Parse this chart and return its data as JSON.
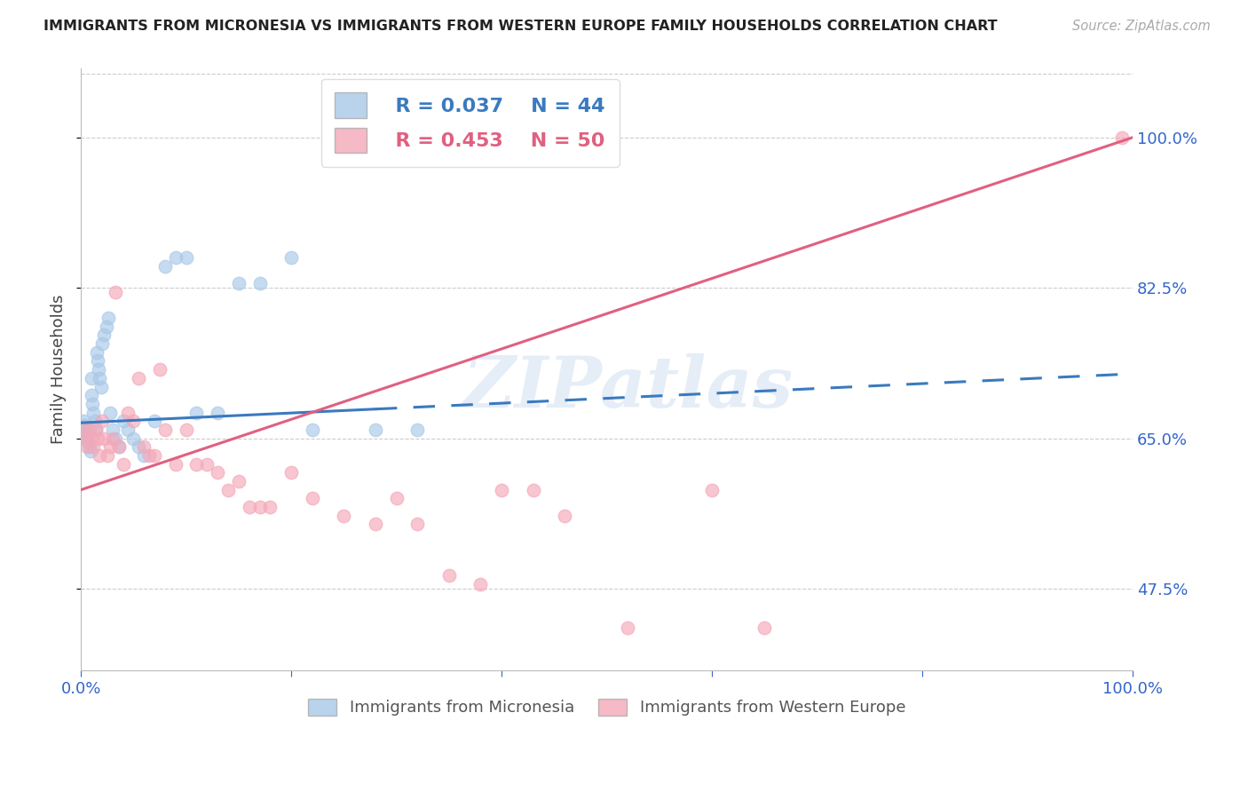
{
  "title": "IMMIGRANTS FROM MICRONESIA VS IMMIGRANTS FROM WESTERN EUROPE FAMILY HOUSEHOLDS CORRELATION CHART",
  "source": "Source: ZipAtlas.com",
  "ylabel": "Family Households",
  "xlim": [
    0.0,
    1.0
  ],
  "ylim": [
    0.38,
    1.08
  ],
  "yticks": [
    0.475,
    0.65,
    0.825,
    1.0
  ],
  "ytick_labels": [
    "47.5%",
    "65.0%",
    "82.5%",
    "100.0%"
  ],
  "xticks": [
    0.0,
    0.2,
    0.4,
    0.6,
    0.8,
    1.0
  ],
  "xtick_labels": [
    "0.0%",
    "",
    "",
    "",
    "",
    "100.0%"
  ],
  "legend1_r": "R = 0.037",
  "legend1_n": "N = 44",
  "legend2_r": "R = 0.453",
  "legend2_n": "N = 50",
  "blue_color": "#a8c8e8",
  "pink_color": "#f4a8b8",
  "blue_line_color": "#3a7abf",
  "pink_line_color": "#e06080",
  "watermark_text": "ZIPatlas",
  "blue_scatter_x": [
    0.002,
    0.003,
    0.004,
    0.005,
    0.006,
    0.007,
    0.008,
    0.009,
    0.01,
    0.01,
    0.011,
    0.012,
    0.013,
    0.014,
    0.015,
    0.016,
    0.017,
    0.018,
    0.019,
    0.02,
    0.022,
    0.024,
    0.026,
    0.028,
    0.03,
    0.033,
    0.036,
    0.04,
    0.045,
    0.05,
    0.055,
    0.06,
    0.07,
    0.08,
    0.09,
    0.1,
    0.11,
    0.13,
    0.15,
    0.17,
    0.2,
    0.22,
    0.28,
    0.32
  ],
  "blue_scatter_y": [
    0.67,
    0.665,
    0.66,
    0.655,
    0.65,
    0.645,
    0.64,
    0.635,
    0.7,
    0.72,
    0.69,
    0.68,
    0.67,
    0.66,
    0.75,
    0.74,
    0.73,
    0.72,
    0.71,
    0.76,
    0.77,
    0.78,
    0.79,
    0.68,
    0.66,
    0.65,
    0.64,
    0.67,
    0.66,
    0.65,
    0.64,
    0.63,
    0.67,
    0.85,
    0.86,
    0.86,
    0.68,
    0.68,
    0.83,
    0.83,
    0.86,
    0.66,
    0.66,
    0.66
  ],
  "pink_scatter_x": [
    0.002,
    0.004,
    0.006,
    0.008,
    0.01,
    0.012,
    0.014,
    0.016,
    0.018,
    0.02,
    0.022,
    0.025,
    0.028,
    0.03,
    0.033,
    0.036,
    0.04,
    0.045,
    0.05,
    0.055,
    0.06,
    0.065,
    0.07,
    0.075,
    0.08,
    0.09,
    0.1,
    0.11,
    0.12,
    0.13,
    0.14,
    0.15,
    0.16,
    0.17,
    0.18,
    0.2,
    0.22,
    0.25,
    0.28,
    0.3,
    0.32,
    0.35,
    0.38,
    0.4,
    0.43,
    0.46,
    0.52,
    0.6,
    0.65,
    0.99
  ],
  "pink_scatter_y": [
    0.66,
    0.65,
    0.64,
    0.66,
    0.65,
    0.64,
    0.66,
    0.65,
    0.63,
    0.67,
    0.65,
    0.63,
    0.64,
    0.65,
    0.82,
    0.64,
    0.62,
    0.68,
    0.67,
    0.72,
    0.64,
    0.63,
    0.63,
    0.73,
    0.66,
    0.62,
    0.66,
    0.62,
    0.62,
    0.61,
    0.59,
    0.6,
    0.57,
    0.57,
    0.57,
    0.61,
    0.58,
    0.56,
    0.55,
    0.58,
    0.55,
    0.49,
    0.48,
    0.59,
    0.59,
    0.56,
    0.43,
    0.59,
    0.43,
    1.0
  ],
  "blue_line_x0": 0.0,
  "blue_line_x1": 1.0,
  "blue_line_y0": 0.668,
  "blue_line_y1": 0.725,
  "pink_line_x0": 0.0,
  "pink_line_x1": 1.0,
  "pink_line_y0": 0.59,
  "pink_line_y1": 1.0,
  "background_color": "#ffffff",
  "grid_color": "#cccccc",
  "axis_label_color": "#3366cc",
  "title_color": "#222222",
  "source_color": "#aaaaaa",
  "ylabel_color": "#444444"
}
